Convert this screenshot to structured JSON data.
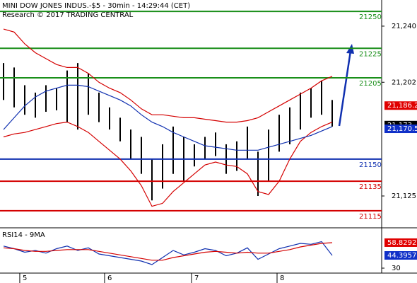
{
  "chart_data": [
    {
      "type": "ohlc",
      "title": "MINI DOW JONES INDUS.-$5 - 30min - 14:29:44 (CET)",
      "subtitle": "Research © 2017 TRADING CENTRAL",
      "xlim": [
        -0.333,
        35.667
      ],
      "ylim": [
        21104.4,
        21257.7
      ],
      "yticks": [
        {
          "value": 21240,
          "label": "21,240"
        },
        {
          "value": 21202,
          "label": "21,202"
        },
        {
          "value": 21125,
          "label": "21,125"
        }
      ],
      "xticks": [
        {
          "value": 1.53,
          "label": "5"
        },
        {
          "value": 9.53,
          "label": "6"
        },
        {
          "value": 17.73,
          "label": "7"
        },
        {
          "value": 25.8,
          "label": "8"
        }
      ],
      "high": [
        21215,
        21212,
        21200,
        21195,
        21200,
        21198,
        21210,
        21215,
        21208,
        21195,
        21185,
        21178,
        21170,
        21165,
        21150,
        21160,
        21172,
        21165,
        21160,
        21165,
        21168,
        21160,
        21162,
        21172,
        21155,
        21170,
        21180,
        21185,
        21195,
        21198,
        21203,
        21190
      ],
      "low": [
        21190,
        21185,
        21180,
        21178,
        21182,
        21183,
        21175,
        21170,
        21180,
        21175,
        21170,
        21162,
        21150,
        21140,
        21122,
        21130,
        21140,
        21135,
        21145,
        21150,
        21152,
        21140,
        21142,
        21150,
        21125,
        21135,
        21155,
        21160,
        21170,
        21178,
        21180,
        21172
      ],
      "color": "#000000",
      "series": [
        {
          "color": "#d40000",
          "values": [
            21238,
            21236,
            21228,
            21222,
            21218,
            21214,
            21212,
            21212,
            21208,
            21202,
            21198,
            21195,
            21190,
            21184,
            21180,
            21180,
            21179,
            21178,
            21178,
            21177,
            21176,
            21175,
            21175,
            21176,
            21178,
            21182,
            21186,
            21190,
            21194,
            21198,
            21203,
            21206
          ]
        },
        {
          "color": "#d40000",
          "values": [
            21165,
            21167,
            21168,
            21170,
            21172,
            21174,
            21175,
            21172,
            21168,
            21162,
            21156,
            21150,
            21142,
            21132,
            21118,
            21120,
            21128,
            21134,
            21140,
            21146,
            21148,
            21146,
            21145,
            21140,
            21128,
            21126,
            21135,
            21150,
            21162,
            21168,
            21172,
            21175
          ]
        },
        {
          "color": "#1030b0",
          "values": [
            21170,
            21178,
            21186,
            21192,
            21196,
            21198,
            21200,
            21200,
            21199,
            21196,
            21193,
            21190,
            21186,
            21180,
            21175,
            21172,
            21168,
            21165,
            21162,
            21159,
            21158,
            21157,
            21156,
            21156,
            21156,
            21158,
            21160,
            21162,
            21164,
            21166,
            21169,
            21172
          ]
        }
      ],
      "levels": [
        {
          "value": 21250,
          "color": "#1a8f1a"
        },
        {
          "value": 21225,
          "color": "#1a8f1a"
        },
        {
          "value": 21205,
          "color": "#1a8f1a"
        },
        {
          "value": 21150,
          "color": "#1030b0"
        },
        {
          "value": 21135,
          "color": "#d40000"
        },
        {
          "value": 21115,
          "color": "#d40000"
        }
      ],
      "markers": [
        {
          "value": 21186.2,
          "label": "21,186.2",
          "color": "#e00000"
        },
        {
          "value": 21173,
          "label": "21,173",
          "color": "#000000"
        },
        {
          "value": 21170.5,
          "label": "21,170.5",
          "color": "#1030c8"
        }
      ]
    },
    {
      "type": "line",
      "title": "RSI14 - 9MA",
      "xlim": [
        -0.333,
        35.667
      ],
      "ylim": [
        25.2,
        73.2
      ],
      "yticks": [
        30
      ],
      "series": [
        {
          "color": "#1030b0",
          "values": [
            55,
            52,
            48,
            50,
            47,
            52,
            55,
            50,
            53,
            46,
            44,
            42,
            40,
            38,
            34,
            42,
            50,
            45,
            48,
            52,
            50,
            44,
            47,
            53,
            40,
            46,
            52,
            55,
            58,
            57,
            60,
            44.3957
          ]
        },
        {
          "color": "#d40000",
          "values": [
            53,
            52,
            50,
            49,
            49,
            50,
            51,
            51,
            51,
            49,
            47,
            45,
            43,
            41,
            39,
            39,
            42,
            44,
            46,
            48,
            49,
            48,
            47,
            48,
            47,
            47,
            49,
            51,
            54,
            56,
            58,
            58.8292
          ]
        }
      ],
      "markers": [
        {
          "value": 58.8292,
          "color": "#e00000"
        },
        {
          "value": 44.3957,
          "color": "#1030c8"
        }
      ]
    }
  ]
}
